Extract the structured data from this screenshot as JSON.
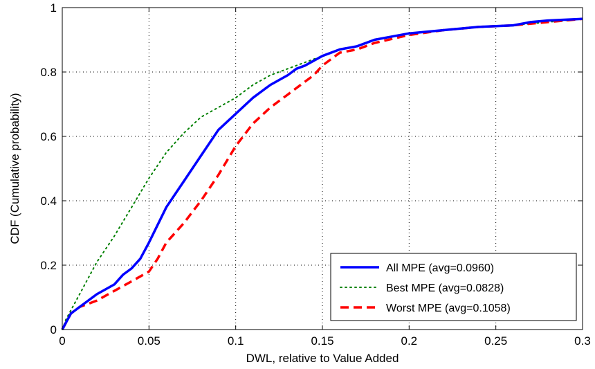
{
  "chart_data": {
    "type": "line",
    "xlabel": "DWL, relative to Value Added",
    "ylabel": "CDF (Cumulative probability)",
    "xlim": [
      0,
      0.3
    ],
    "ylim": [
      0,
      1
    ],
    "xticks": [
      "0",
      "0.05",
      "0.1",
      "0.15",
      "0.2",
      "0.25",
      "0.3"
    ],
    "yticks": [
      "0",
      "0.2",
      "0.4",
      "0.6",
      "0.8",
      "1"
    ],
    "grid": true,
    "legend_position": "bottom-right",
    "series": [
      {
        "name": "All MPE (avg=0.0960)",
        "color": "#0000ff",
        "style": "solid",
        "x": [
          0,
          0.002,
          0.005,
          0.01,
          0.015,
          0.02,
          0.03,
          0.035,
          0.04,
          0.045,
          0.05,
          0.06,
          0.07,
          0.08,
          0.09,
          0.1,
          0.11,
          0.12,
          0.13,
          0.135,
          0.14,
          0.15,
          0.16,
          0.17,
          0.18,
          0.19,
          0.2,
          0.22,
          0.24,
          0.26,
          0.27,
          0.28,
          0.3
        ],
        "y": [
          0,
          0.02,
          0.05,
          0.07,
          0.09,
          0.11,
          0.14,
          0.17,
          0.19,
          0.22,
          0.27,
          0.38,
          0.46,
          0.54,
          0.62,
          0.67,
          0.72,
          0.76,
          0.79,
          0.81,
          0.82,
          0.85,
          0.87,
          0.88,
          0.9,
          0.91,
          0.92,
          0.93,
          0.94,
          0.945,
          0.955,
          0.96,
          0.965
        ]
      },
      {
        "name": "Best MPE (avg=0.0828)",
        "color": "#008000",
        "style": "dotted",
        "x": [
          0,
          0.002,
          0.005,
          0.01,
          0.015,
          0.02,
          0.03,
          0.04,
          0.05,
          0.06,
          0.07,
          0.08,
          0.09,
          0.1,
          0.11,
          0.12,
          0.13,
          0.14,
          0.15,
          0.16,
          0.17,
          0.18,
          0.2,
          0.22,
          0.24,
          0.26,
          0.28,
          0.3
        ],
        "y": [
          0,
          0.03,
          0.06,
          0.11,
          0.16,
          0.21,
          0.29,
          0.38,
          0.47,
          0.55,
          0.61,
          0.66,
          0.69,
          0.72,
          0.76,
          0.79,
          0.81,
          0.83,
          0.85,
          0.87,
          0.88,
          0.9,
          0.92,
          0.93,
          0.94,
          0.945,
          0.955,
          0.965
        ]
      },
      {
        "name": "Worst MPE (avg=0.1058)",
        "color": "#ff0000",
        "style": "dashed",
        "x": [
          0,
          0.002,
          0.005,
          0.01,
          0.015,
          0.02,
          0.03,
          0.04,
          0.05,
          0.055,
          0.06,
          0.07,
          0.08,
          0.09,
          0.1,
          0.11,
          0.12,
          0.13,
          0.14,
          0.145,
          0.15,
          0.16,
          0.17,
          0.18,
          0.2,
          0.22,
          0.24,
          0.26,
          0.28,
          0.3
        ],
        "y": [
          0,
          0.02,
          0.05,
          0.07,
          0.08,
          0.09,
          0.12,
          0.15,
          0.18,
          0.22,
          0.27,
          0.33,
          0.4,
          0.48,
          0.57,
          0.64,
          0.69,
          0.73,
          0.77,
          0.79,
          0.82,
          0.86,
          0.87,
          0.89,
          0.915,
          0.93,
          0.94,
          0.945,
          0.955,
          0.965
        ]
      }
    ]
  }
}
